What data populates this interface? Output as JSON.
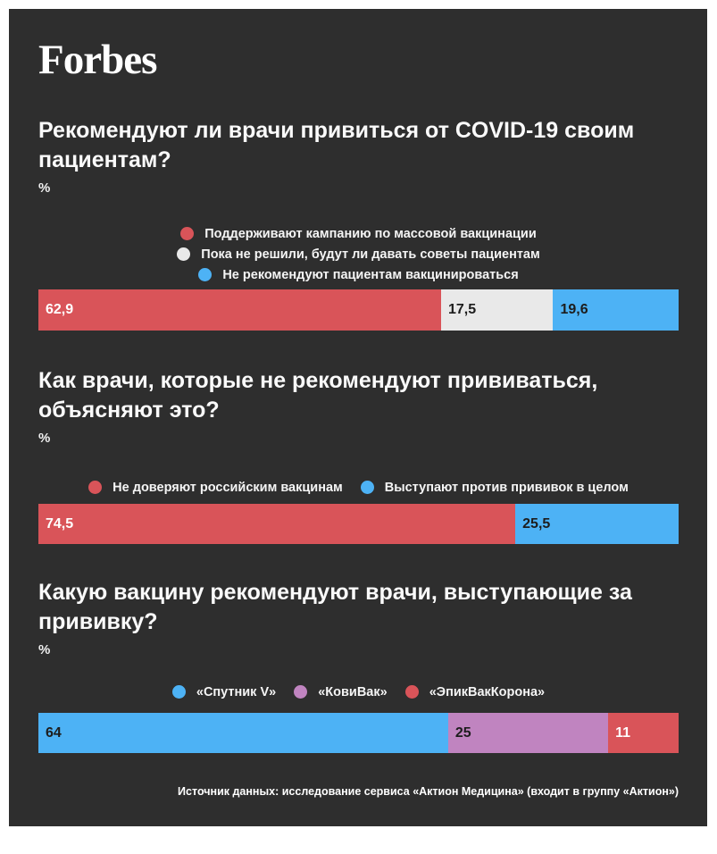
{
  "brand": {
    "logo_text": "Forbes"
  },
  "colors": {
    "panel_background": "#2e2e2e",
    "frame": "#ffffff",
    "text": "#fafafa",
    "red": "#d95459",
    "gray": "#e9e9e9",
    "blue": "#4db2f5",
    "purple": "#c084c0"
  },
  "footer": {
    "source": "Источник данных: исследование сервиса «Актион Медицина» (входит в группу «Актион»)"
  },
  "chart_data": [
    {
      "type": "bar",
      "orientation": "horizontal",
      "stacked": true,
      "title": "Рекомендуют ли врачи привиться от COVID-19 своим пациентам?",
      "unit_label": "%",
      "xlim": [
        0,
        100
      ],
      "legend_position": "top-center-stacked",
      "segments": [
        {
          "label": "Поддерживают кампанию по массовой вакцинации",
          "value": 62.9,
          "value_display": "62,9",
          "color": "#d95459",
          "value_text_color": "#ffffff"
        },
        {
          "label": "Пока не решили, будут ли давать советы пациентам",
          "value": 17.5,
          "value_display": "17,5",
          "color": "#e9e9e9",
          "value_text_color": "#1d1d1d"
        },
        {
          "label": "Не рекомендуют пациентам вакцинироваться",
          "value": 19.6,
          "value_display": "19,6",
          "color": "#4db2f5",
          "value_text_color": "#1d1d1d"
        }
      ]
    },
    {
      "type": "bar",
      "orientation": "horizontal",
      "stacked": true,
      "title": "Как врачи, которые не рекомендуют прививаться, объясняют это?",
      "unit_label": "%",
      "xlim": [
        0,
        100
      ],
      "legend_position": "top-center-row",
      "segments": [
        {
          "label": "Не доверяют российским вакцинам",
          "value": 74.5,
          "value_display": "74,5",
          "color": "#d95459",
          "value_text_color": "#ffffff"
        },
        {
          "label": "Выступают против прививок в целом",
          "value": 25.5,
          "value_display": "25,5",
          "color": "#4db2f5",
          "value_text_color": "#1d1d1d"
        }
      ]
    },
    {
      "type": "bar",
      "orientation": "horizontal",
      "stacked": true,
      "title": "Какую вакцину рекомендуют врачи, выступающие за прививку?",
      "unit_label": "%",
      "xlim": [
        0,
        100
      ],
      "legend_position": "top-center-row",
      "segments": [
        {
          "label": "«Спутник V»",
          "value": 64,
          "value_display": "64",
          "color": "#4db2f5",
          "value_text_color": "#1d1d1d"
        },
        {
          "label": "«КовиВак»",
          "value": 25,
          "value_display": "25",
          "color": "#c084c0",
          "value_text_color": "#1d1d1d"
        },
        {
          "label": "«ЭпикВакКорона»",
          "value": 11,
          "value_display": "11",
          "color": "#d95459",
          "value_text_color": "#ffffff"
        }
      ]
    }
  ]
}
